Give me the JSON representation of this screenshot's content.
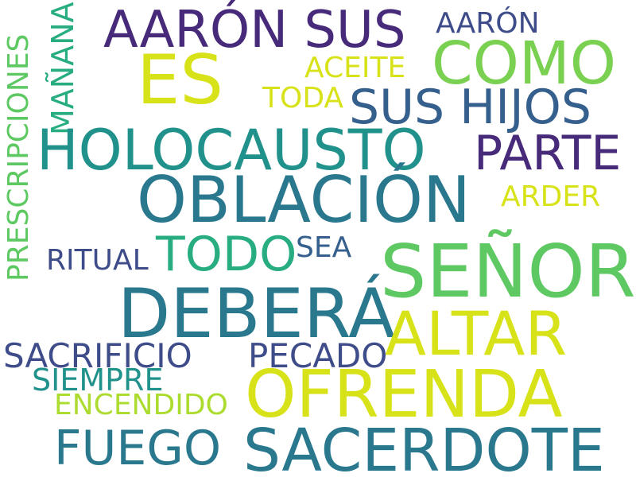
{
  "colors": {
    "background": "#ffffff",
    "dark_purple": "#472a7a",
    "indigo": "#3e4c8a",
    "slate_blue": "#355f8d",
    "steel_teal": "#2a788e",
    "teal": "#21918c",
    "sea_green": "#27ad81",
    "green": "#5ec962",
    "light_green": "#7ad151",
    "yellow_green": "#addc30",
    "yellow": "#d8e219"
  },
  "words": {
    "prescripciones": "PRESCRIPCIONES",
    "manana": "MAÑANA",
    "aaron_sus": "AARÓN SUS",
    "aaron": "AARÓN",
    "es": "ES",
    "como": "COMO",
    "aceite": "ACEITE",
    "toda": "TODA",
    "sus_hijos": "SUS HIJOS",
    "holocausto": "HOLOCAUSTO",
    "parte": "PARTE",
    "oblacion": "OBLACIÓN",
    "arder": "ARDER",
    "ritual": "RITUAL",
    "todo": "TODO",
    "sea": "SEA",
    "senor": "SEÑOR",
    "debera": "DEBERÁ",
    "altar": "ALTAR",
    "sacrificio": "SACRIFICIO",
    "pecado": "PECADO",
    "siempre": "SIEMPRE",
    "encendido": "ENCENDIDO",
    "ofrenda": "OFRENDA",
    "fuego": "FUEGO",
    "sacerdote": "SACERDOTE"
  }
}
